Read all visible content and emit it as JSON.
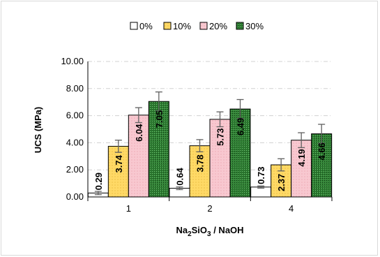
{
  "chart_data": {
    "type": "bar",
    "title": "",
    "xlabel": "Na2SiO3 / NaOH",
    "xlabel_parts": {
      "base1": "Na",
      "sub1": "2",
      "mid": "SiO",
      "sub2": "3",
      "rest": " / NaOH"
    },
    "ylabel": "UCS (MPa)",
    "ylim": [
      0,
      10
    ],
    "y_ticks": [
      "0.00",
      "2.00",
      "4.00",
      "6.00",
      "8.00",
      "10.00"
    ],
    "y_tick_values": [
      0,
      2,
      4,
      6,
      8,
      10
    ],
    "categories": [
      "1",
      "2",
      "4"
    ],
    "series": [
      {
        "name": "0%",
        "values": [
          0.29,
          0.64,
          0.73
        ],
        "labels": [
          "0.29",
          "0.64",
          "0.73"
        ],
        "errors": [
          0.12,
          0.1,
          0.08
        ],
        "color": "#ffffff"
      },
      {
        "name": "10%",
        "values": [
          3.74,
          3.78,
          2.37
        ],
        "labels": [
          "3.74",
          "3.78",
          "2.37"
        ],
        "errors": [
          0.45,
          0.45,
          0.45
        ],
        "color": "#ffd966"
      },
      {
        "name": "20%",
        "values": [
          6.04,
          5.73,
          4.19
        ],
        "labels": [
          "6.04",
          "5.73",
          "4.19"
        ],
        "errors": [
          0.55,
          0.55,
          0.55
        ],
        "color": "#f8c8d0"
      },
      {
        "name": "30%",
        "values": [
          7.05,
          6.49,
          4.66
        ],
        "labels": [
          "7.05",
          "6.49",
          "4.66"
        ],
        "errors": [
          0.7,
          0.7,
          0.7
        ],
        "color": "#2e7d32"
      }
    ],
    "legend_position": "top",
    "grid": true
  }
}
